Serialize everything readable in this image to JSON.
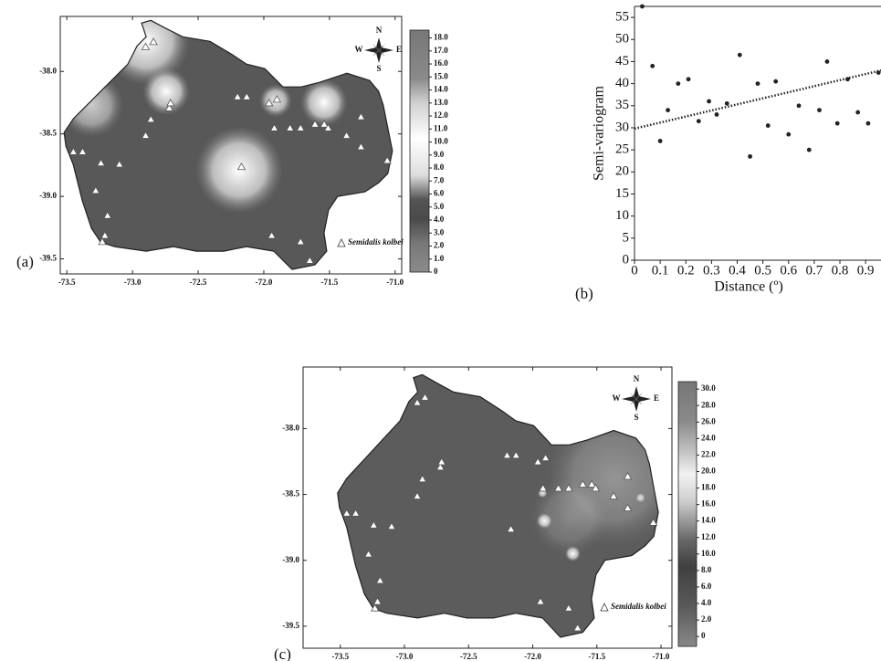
{
  "chart_data": [
    {
      "type": "map",
      "panel_label": "(a)",
      "xlim": [
        -73.55,
        -70.95
      ],
      "ylim": [
        -39.62,
        -37.56
      ],
      "xticks": [
        -73.5,
        {
          "value": -73,
          "label": "-73.0"
        },
        -72.5,
        {
          "value": -72,
          "label": "-72.0"
        },
        -71.5,
        {
          "value": -71,
          "label": "-71.0"
        }
      ],
      "yticks": [
        {
          "value": -38,
          "label": "-38.0"
        },
        -38.5,
        {
          "value": -39,
          "label": "-39.0"
        },
        -39.5
      ],
      "colorbar_lim": [
        0,
        18.6
      ],
      "colorbar_ticks": [
        0,
        {
          "value": 1,
          "label": "1.0"
        },
        {
          "value": 2,
          "label": "2.0"
        },
        {
          "value": 3,
          "label": "3.0"
        },
        {
          "value": 4,
          "label": "4.0"
        },
        {
          "value": 5,
          "label": "5.0"
        },
        {
          "value": 6,
          "label": "6.0"
        },
        {
          "value": 7,
          "label": "7.0"
        },
        {
          "value": 8,
          "label": "8.0"
        },
        {
          "value": 9,
          "label": "9.0"
        },
        {
          "value": 10,
          "label": "10.0"
        },
        {
          "value": 11,
          "label": "11.0"
        },
        {
          "value": 12,
          "label": "12.0"
        },
        {
          "value": 13,
          "label": "13.0"
        },
        {
          "value": 14,
          "label": "14.0"
        },
        {
          "value": 15,
          "label": "15.0"
        },
        {
          "value": 16,
          "label": "16.0"
        },
        {
          "value": 17,
          "label": "17.0"
        },
        {
          "value": 18,
          "label": "18.0"
        }
      ],
      "compass": [
        "N",
        "E",
        "S",
        "W"
      ],
      "legend": "Semidalis kolbei",
      "occurrences": {
        "lon": [
          -72.9,
          -72.84,
          -72.72,
          -72.71,
          -72.86,
          -72.9,
          -73.45,
          -73.38,
          -73.24,
          -73.1,
          -73.28,
          -73.19,
          -73.21,
          -73.23,
          -72.17,
          -72.2,
          -72.13,
          -71.96,
          -71.9,
          -71.92,
          -71.8,
          -71.72,
          -71.61,
          -71.54,
          -71.51,
          -71.37,
          -71.26,
          -71.26,
          -71.06,
          -71.94,
          -71.72,
          -71.65
        ],
        "lat": [
          -37.8,
          -37.76,
          -38.29,
          -38.25,
          -38.38,
          -38.51,
          -38.64,
          -38.64,
          -38.73,
          -38.74,
          -38.95,
          -39.15,
          -39.31,
          -39.36,
          -38.76,
          -38.2,
          -38.2,
          -38.25,
          -38.22,
          -38.45,
          -38.45,
          -38.45,
          -38.42,
          -38.42,
          -38.45,
          -38.51,
          -38.36,
          -38.6,
          -38.71,
          -39.31,
          -39.36,
          -39.51
        ]
      }
    },
    {
      "type": "scatter",
      "panel_label": "(b)",
      "x_label": "Distance (º)",
      "y_label": "Semi-variogram",
      "xlim": [
        0,
        0.96
      ],
      "ylim": [
        0,
        57.5
      ],
      "xticks": [
        0,
        0.1,
        0.2,
        0.3,
        0.4,
        0.5,
        0.6,
        0.7,
        0.8,
        0.9
      ],
      "yticks": [
        0,
        5,
        10,
        15,
        20,
        25,
        30,
        35,
        40,
        45,
        50,
        55
      ],
      "x": [
        0.03,
        0.07,
        0.1,
        0.13,
        0.17,
        0.21,
        0.25,
        0.29,
        0.32,
        0.36,
        0.41,
        0.45,
        0.48,
        0.52,
        0.55,
        0.6,
        0.64,
        0.68,
        0.72,
        0.75,
        0.79,
        0.83,
        0.87,
        0.91,
        0.95
      ],
      "values": [
        57.5,
        44,
        27,
        34,
        40,
        41,
        31.5,
        36,
        33,
        35.5,
        46.5,
        23.5,
        40,
        30.5,
        40.5,
        28.5,
        35,
        25,
        34,
        45,
        31,
        41,
        33.5,
        31,
        42.5
      ],
      "color": "#222222",
      "trend": {
        "x": [
          0,
          0.96
        ],
        "values": [
          29.8,
          43
        ]
      }
    },
    {
      "type": "map",
      "panel_label": "(c)",
      "xlim": [
        -73.79,
        -70.915
      ],
      "ylim": [
        -39.667,
        -37.533
      ],
      "xticks": [
        -73.5,
        {
          "value": -73,
          "label": "-73.0"
        },
        -72.5,
        {
          "value": -72,
          "label": "-72.0"
        },
        -71.5,
        {
          "value": -71,
          "label": "-71.0"
        }
      ],
      "yticks": [
        {
          "value": -38,
          "label": "-38.0"
        },
        -38.5,
        {
          "value": -39,
          "label": "-39.0"
        },
        -39.5
      ],
      "colorbar_lim": [
        -1.2,
        30.9
      ],
      "colorbar_ticks": [
        0,
        {
          "value": 2,
          "label": "2.0"
        },
        {
          "value": 4,
          "label": "4.0"
        },
        {
          "value": 6,
          "label": "6.0"
        },
        {
          "value": 8,
          "label": "8.0"
        },
        {
          "value": 10,
          "label": "10.0"
        },
        {
          "value": 12,
          "label": "12.0"
        },
        {
          "value": 14,
          "label": "14.0"
        },
        {
          "value": 16,
          "label": "16.0"
        },
        {
          "value": 18,
          "label": "18.0"
        },
        {
          "value": 20,
          "label": "20.0"
        },
        {
          "value": 22,
          "label": "22.0"
        },
        {
          "value": 24,
          "label": "24.0"
        },
        {
          "value": 26,
          "label": "26.0"
        },
        {
          "value": 28,
          "label": "28.0"
        },
        {
          "value": 30,
          "label": "30.0"
        }
      ],
      "compass": [
        "N",
        "E",
        "S",
        "W"
      ],
      "legend": "Semidalis kolbei",
      "occurrences": {
        "lon": [
          -72.9,
          -72.84,
          -72.72,
          -72.71,
          -72.86,
          -72.9,
          -73.45,
          -73.38,
          -73.24,
          -73.1,
          -73.28,
          -73.19,
          -73.21,
          -73.23,
          -72.17,
          -72.2,
          -72.13,
          -71.96,
          -71.9,
          -71.92,
          -71.8,
          -71.72,
          -71.61,
          -71.54,
          -71.51,
          -71.37,
          -71.26,
          -71.26,
          -71.06,
          -71.94,
          -71.72,
          -71.65
        ],
        "lat": [
          -37.8,
          -37.76,
          -38.29,
          -38.25,
          -38.38,
          -38.51,
          -38.64,
          -38.64,
          -38.73,
          -38.74,
          -38.95,
          -39.15,
          -39.31,
          -39.36,
          -38.76,
          -38.2,
          -38.2,
          -38.25,
          -38.22,
          -38.45,
          -38.45,
          -38.45,
          -38.42,
          -38.42,
          -38.45,
          -38.51,
          -38.36,
          -38.6,
          -38.71,
          -39.31,
          -39.36,
          -39.51
        ]
      }
    }
  ]
}
